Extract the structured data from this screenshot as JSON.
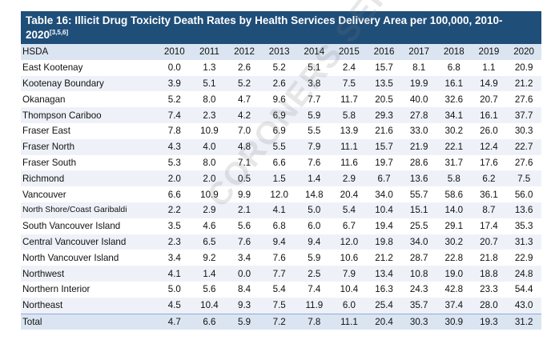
{
  "table": {
    "title": "Table 16: Illicit Drug Toxicity Death Rates by Health Services Delivery Area per 100,000, 2010-2020",
    "title_refs": "[3,5,6]",
    "header": [
      "HSDA",
      "2010",
      "2011",
      "2012",
      "2013",
      "2014",
      "2015",
      "2016",
      "2017",
      "2018",
      "2019",
      "2020"
    ],
    "rows": [
      {
        "name": "East Kootenay",
        "values": [
          "0.0",
          "1.3",
          "2.6",
          "5.2",
          "5.1",
          "2.4",
          "15.7",
          "8.1",
          "6.8",
          "1.1",
          "20.9"
        ]
      },
      {
        "name": "Kootenay Boundary",
        "values": [
          "3.9",
          "5.1",
          "5.2",
          "2.6",
          "3.8",
          "7.5",
          "13.5",
          "19.9",
          "16.1",
          "14.9",
          "21.2"
        ]
      },
      {
        "name": "Okanagan",
        "values": [
          "5.2",
          "8.0",
          "4.7",
          "9.6",
          "7.7",
          "11.7",
          "20.5",
          "40.0",
          "32.6",
          "20.7",
          "27.6"
        ]
      },
      {
        "name": "Thompson Cariboo",
        "values": [
          "7.4",
          "2.3",
          "4.2",
          "6.9",
          "5.9",
          "5.8",
          "29.3",
          "27.8",
          "34.1",
          "16.1",
          "37.7"
        ]
      },
      {
        "name": "Fraser East",
        "values": [
          "7.8",
          "10.9",
          "7.0",
          "6.9",
          "5.5",
          "13.9",
          "21.6",
          "33.0",
          "30.2",
          "26.0",
          "30.3"
        ]
      },
      {
        "name": "Fraser North",
        "values": [
          "4.3",
          "4.0",
          "4.8",
          "5.5",
          "7.9",
          "11.1",
          "15.7",
          "21.9",
          "22.1",
          "12.4",
          "22.7"
        ]
      },
      {
        "name": "Fraser South",
        "values": [
          "5.3",
          "8.0",
          "7.1",
          "6.6",
          "7.6",
          "11.6",
          "19.7",
          "28.6",
          "31.7",
          "17.6",
          "27.6"
        ]
      },
      {
        "name": "Richmond",
        "values": [
          "2.0",
          "2.0",
          "0.5",
          "1.5",
          "1.4",
          "2.9",
          "6.7",
          "13.6",
          "5.8",
          "6.2",
          "7.5"
        ]
      },
      {
        "name": "Vancouver",
        "values": [
          "6.6",
          "10.9",
          "9.9",
          "12.0",
          "14.8",
          "20.4",
          "34.0",
          "55.7",
          "58.6",
          "36.1",
          "56.0"
        ]
      },
      {
        "name": "North Shore/Coast Garibaldi",
        "values": [
          "2.2",
          "2.9",
          "2.1",
          "4.1",
          "5.0",
          "5.4",
          "10.4",
          "15.1",
          "14.0",
          "8.7",
          "13.6"
        ],
        "small": true
      },
      {
        "name": "South Vancouver Island",
        "values": [
          "3.5",
          "4.6",
          "5.6",
          "6.8",
          "6.0",
          "6.7",
          "19.4",
          "25.5",
          "29.1",
          "17.4",
          "35.3"
        ]
      },
      {
        "name": "Central Vancouver Island",
        "values": [
          "2.3",
          "6.5",
          "7.6",
          "9.4",
          "9.4",
          "12.0",
          "19.8",
          "34.0",
          "30.2",
          "20.7",
          "31.3"
        ]
      },
      {
        "name": "North Vancouver Island",
        "values": [
          "3.4",
          "9.2",
          "3.4",
          "7.6",
          "5.9",
          "10.6",
          "21.2",
          "28.7",
          "22.8",
          "21.8",
          "22.9"
        ]
      },
      {
        "name": "Northwest",
        "values": [
          "4.1",
          "1.4",
          "0.0",
          "7.7",
          "2.5",
          "7.9",
          "13.4",
          "10.8",
          "19.0",
          "18.8",
          "24.8"
        ]
      },
      {
        "name": "Northern Interior",
        "values": [
          "5.0",
          "5.6",
          "8.4",
          "5.4",
          "7.4",
          "10.4",
          "16.3",
          "24.3",
          "42.8",
          "23.3",
          "54.4"
        ]
      },
      {
        "name": "Northeast",
        "values": [
          "4.5",
          "10.4",
          "9.3",
          "7.5",
          "11.9",
          "6.0",
          "25.4",
          "35.7",
          "37.4",
          "28.0",
          "43.0"
        ]
      }
    ],
    "total": {
      "name": "Total",
      "values": [
        "4.7",
        "6.6",
        "5.9",
        "7.2",
        "7.8",
        "11.1",
        "20.4",
        "30.3",
        "30.9",
        "19.3",
        "31.2"
      ]
    }
  },
  "watermark": "CORONERS SERVICE"
}
